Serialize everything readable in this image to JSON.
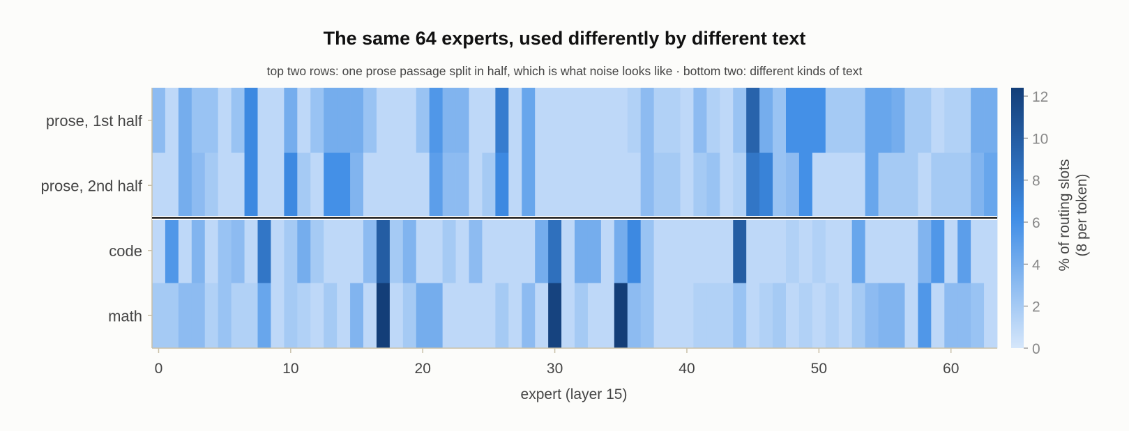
{
  "chart_data": {
    "type": "heatmap",
    "title": "The same 64 experts, used differently by different text",
    "subtitle": "top two rows: one prose passage split in half, which is what noise looks like  ·  bottom two: different kinds of text",
    "xlabel": "expert (layer 15)",
    "colorbar_label": "% of routing slots",
    "colorbar_sublabel": "(8 per token)",
    "rows": [
      "prose, 1st half",
      "prose, 2nd half",
      "code",
      "math"
    ],
    "x_ticks": [
      0,
      10,
      20,
      30,
      40,
      50,
      60
    ],
    "colorbar_ticks": [
      0,
      2,
      4,
      6,
      8,
      10,
      12
    ],
    "vmin": 0,
    "vmax": 12.4,
    "color_low": "#d6e7fb",
    "color_mid": "#3f8de6",
    "color_high": "#133e78",
    "values": [
      [
        3.0,
        1.0,
        4.0,
        2.5,
        2.5,
        1.0,
        2.5,
        6.5,
        1.0,
        1.0,
        4.0,
        1.0,
        2.5,
        4.0,
        4.0,
        4.0,
        2.5,
        1.0,
        1.0,
        1.0,
        2.5,
        5.5,
        3.5,
        3.5,
        1.0,
        1.0,
        7.5,
        1.0,
        4.5,
        1.0,
        1.0,
        1.0,
        1.0,
        1.0,
        1.0,
        1.0,
        1.5,
        3.0,
        1.5,
        1.5,
        1.0,
        3.0,
        1.5,
        1.0,
        2.5,
        9.5,
        4.0,
        2.5,
        6.0,
        6.0,
        6.0,
        2.0,
        2.0,
        2.0,
        4.5,
        4.5,
        4.0,
        2.0,
        2.0,
        1.0,
        1.5,
        1.5,
        4.0,
        4.0
      ],
      [
        1.0,
        1.0,
        4.0,
        3.0,
        2.0,
        1.0,
        1.0,
        6.5,
        1.0,
        1.0,
        6.5,
        2.0,
        1.0,
        6.0,
        6.0,
        3.5,
        1.0,
        1.0,
        1.0,
        1.0,
        1.0,
        5.0,
        3.0,
        3.0,
        1.0,
        2.0,
        6.5,
        1.0,
        4.5,
        1.0,
        1.0,
        1.0,
        1.0,
        1.0,
        1.0,
        1.0,
        1.0,
        3.0,
        2.0,
        2.0,
        1.0,
        2.0,
        2.5,
        1.0,
        1.5,
        8.0,
        7.0,
        2.5,
        3.0,
        6.0,
        1.0,
        1.0,
        1.0,
        1.0,
        4.5,
        2.0,
        2.0,
        2.0,
        1.0,
        2.0,
        2.0,
        2.0,
        3.5,
        4.5
      ],
      [
        1.0,
        5.5,
        1.0,
        3.5,
        1.0,
        2.5,
        3.0,
        1.0,
        8.0,
        1.0,
        2.0,
        4.0,
        2.0,
        1.0,
        1.0,
        1.0,
        3.0,
        10.0,
        2.0,
        3.5,
        1.0,
        1.0,
        2.0,
        1.0,
        3.0,
        1.0,
        1.0,
        1.0,
        1.0,
        4.0,
        8.5,
        1.0,
        4.0,
        4.0,
        1.0,
        4.0,
        6.5,
        2.5,
        1.0,
        1.0,
        1.0,
        1.0,
        1.0,
        1.0,
        10.0,
        1.0,
        1.0,
        1.0,
        1.5,
        1.0,
        1.5,
        1.0,
        1.0,
        4.5,
        1.0,
        1.0,
        1.0,
        1.0,
        3.5,
        5.5,
        1.0,
        5.0,
        1.0,
        1.0
      ],
      [
        2.0,
        2.0,
        3.0,
        3.0,
        1.5,
        2.5,
        1.5,
        1.5,
        4.5,
        1.0,
        2.0,
        1.5,
        1.0,
        2.0,
        1.0,
        3.5,
        1.0,
        12.4,
        1.0,
        2.0,
        4.0,
        4.0,
        1.0,
        1.0,
        1.0,
        1.0,
        2.0,
        1.0,
        3.0,
        1.0,
        12.0,
        1.0,
        2.0,
        1.0,
        1.0,
        12.4,
        3.0,
        2.5,
        1.0,
        1.0,
        1.0,
        1.5,
        1.5,
        1.5,
        2.5,
        1.0,
        1.5,
        2.0,
        1.0,
        1.5,
        1.0,
        1.5,
        1.0,
        2.0,
        3.0,
        3.5,
        3.5,
        1.0,
        5.5,
        1.0,
        3.0,
        3.0,
        2.5,
        1.0
      ]
    ]
  }
}
